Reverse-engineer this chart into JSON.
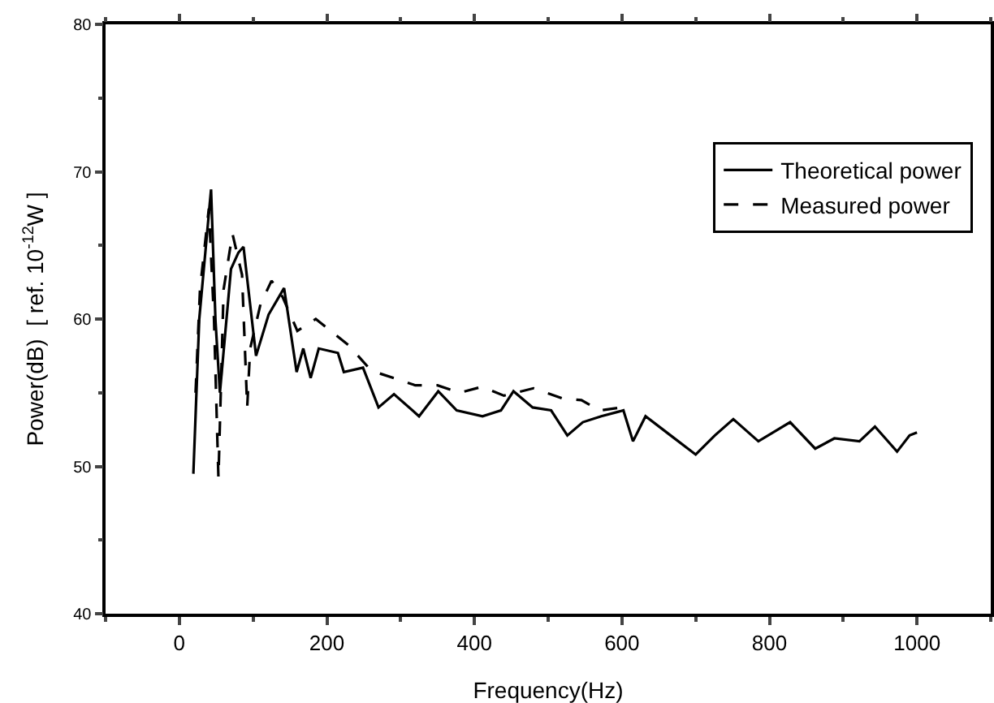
{
  "chart_data": {
    "type": "line",
    "xlabel": "Frequency(Hz)",
    "ylabel": "Power(dB)  [ ref. 10$^{-12}$W ]",
    "xlim": [
      -100,
      1100
    ],
    "xticks": [
      0,
      200,
      400,
      600,
      800,
      1000
    ],
    "ylim": [
      40,
      80
    ],
    "yticks": [
      40,
      50,
      60,
      70,
      80
    ],
    "grid": false,
    "legend": "top right",
    "marker": "none",
    "series": [
      {
        "name": "Theoretical power",
        "color": "#000000",
        "line_style": "solid",
        "x": [
          19,
          27,
          43,
          49,
          55,
          70,
          80,
          87,
          104,
          121,
          142,
          159,
          168,
          178,
          189,
          215,
          223,
          249,
          270,
          291,
          325,
          351,
          376,
          411,
          436,
          453,
          479,
          504,
          526,
          547,
          572,
          602,
          615,
          632,
          666,
          700,
          726,
          751,
          785,
          828,
          862,
          888,
          922,
          943,
          973,
          990,
          1000
        ],
        "values": [
          49.5,
          60,
          68.8,
          59.9,
          55,
          63.4,
          64.5,
          64.9,
          57.5,
          60.3,
          62.1,
          56.4,
          58,
          56,
          58,
          57.7,
          56.4,
          56.7,
          54,
          54.9,
          53.4,
          55.1,
          53.8,
          53.4,
          53.8,
          55.1,
          54,
          53.8,
          52.1,
          53,
          53.4,
          53.8,
          51.7,
          53.4,
          52.1,
          50.8,
          52.1,
          53.2,
          51.7,
          53,
          51.2,
          51.9,
          51.7,
          52.7,
          51,
          52.1,
          52.3
        ]
      },
      {
        "name": "Measured power",
        "color": "#000000",
        "line_style": "dashed",
        "x": [
          22,
          28,
          40,
          47,
          53,
          60,
          72,
          85,
          92,
          96,
          110,
          125,
          140,
          160,
          185,
          210,
          230,
          260,
          290,
          320,
          350,
          380,
          410,
          440,
          480,
          520,
          545,
          570,
          600,
          610
        ],
        "values": [
          55,
          62,
          67.5,
          60,
          49.2,
          62,
          65.8,
          63,
          54,
          58,
          61,
          62.6,
          61.5,
          59.2,
          60,
          59,
          58.2,
          56.5,
          56,
          55.5,
          55.5,
          55,
          55.4,
          54.8,
          55.3,
          54.6,
          54.5,
          53.8,
          54,
          53.8
        ]
      }
    ]
  }
}
